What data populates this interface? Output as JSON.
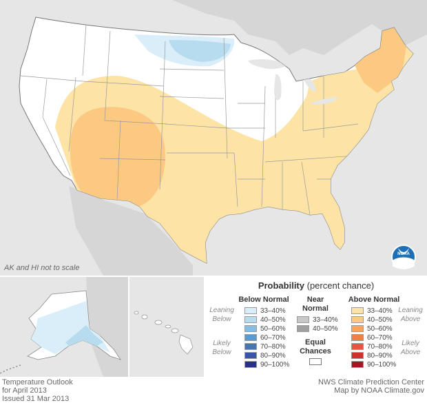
{
  "scale_note": "AK and HI not to scale",
  "legend": {
    "title_bold": "Probability",
    "title_rest": "(percent chance)",
    "below_header": "Below Normal",
    "near_header_1": "Near",
    "near_header_2": "Normal",
    "above_header": "Above Normal",
    "equal_1": "Equal",
    "equal_2": "Chances",
    "leaning_below": [
      "Leaning",
      "Below"
    ],
    "likely_below": [
      "Likely",
      "Below"
    ],
    "leaning_above": [
      "Leaning",
      "Above"
    ],
    "likely_above": [
      "Likely",
      "Above"
    ],
    "below": [
      {
        "label": "33–40%",
        "color": "#d9eef9"
      },
      {
        "label": "40–50%",
        "color": "#b8dcef"
      },
      {
        "label": "50–60%",
        "color": "#86bde0"
      },
      {
        "label": "60–70%",
        "color": "#5b99cf"
      },
      {
        "label": "70–80%",
        "color": "#4575b4"
      },
      {
        "label": "80–90%",
        "color": "#3a55a8"
      },
      {
        "label": "90–100%",
        "color": "#2b2f8c"
      }
    ],
    "near": [
      {
        "label": "33–40%",
        "color": "#c8c8c8"
      },
      {
        "label": "40–50%",
        "color": "#a0a0a0"
      }
    ],
    "above": [
      {
        "label": "33–40%",
        "color": "#fde4a6"
      },
      {
        "label": "40–50%",
        "color": "#fcc983"
      },
      {
        "label": "50–60%",
        "color": "#f9a35c"
      },
      {
        "label": "60–70%",
        "color": "#f47d42"
      },
      {
        "label": "70–80%",
        "color": "#e8553a"
      },
      {
        "label": "80–90%",
        "color": "#d4302b"
      },
      {
        "label": "90–100%",
        "color": "#a8141f"
      }
    ]
  },
  "footer_left": [
    "Temperature Outlook",
    "for April 2013",
    "Issued 31 Mar 2013"
  ],
  "footer_right": [
    "NWS Climate Prediction Center",
    "Map by NOAA Climate.gov"
  ],
  "logo_text": "NOAA"
}
